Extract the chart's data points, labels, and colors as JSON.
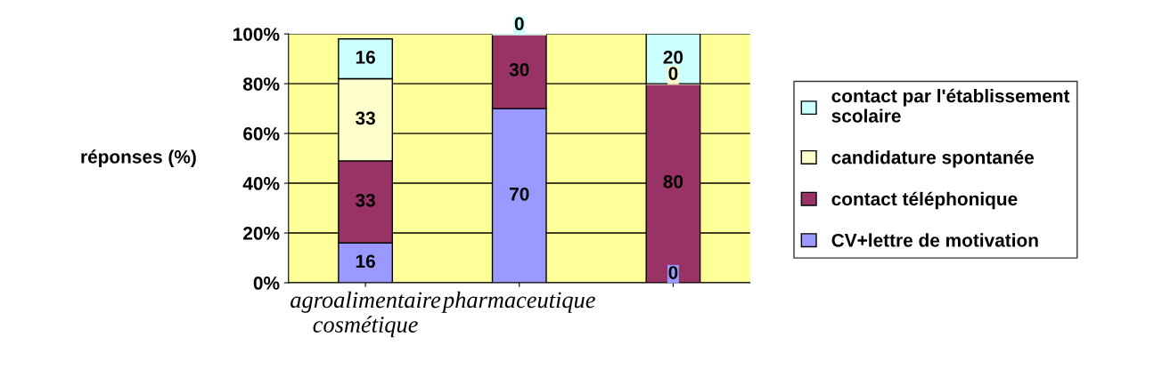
{
  "chart_data": {
    "type": "bar",
    "stacked": true,
    "ylabel": "réponses (%)",
    "categories": [
      "agroalimentaire cosmétique",
      "pharmaceutique",
      null
    ],
    "series": [
      {
        "name": "CV+lettre de motivation",
        "color": "#9999ff",
        "values": [
          16,
          70,
          0
        ],
        "value_labels": [
          "16",
          "70",
          "0"
        ]
      },
      {
        "name": "contact téléphonique",
        "color": "#993366",
        "values": [
          33,
          30,
          80
        ],
        "value_labels": [
          "33",
          "30",
          "80"
        ]
      },
      {
        "name": "candidature spontanée",
        "color": "#ffffcc",
        "values": [
          33,
          null,
          0
        ],
        "value_labels": [
          "33",
          null,
          "0"
        ]
      },
      {
        "name": "contact par l'établissement scolaire",
        "color": "#ccffff",
        "values": [
          16,
          0,
          20
        ],
        "value_labels": [
          "16",
          "0",
          "20"
        ]
      }
    ],
    "ylim": [
      0,
      100
    ],
    "yticks": [
      {
        "value": 0,
        "label": "0%"
      },
      {
        "value": 20,
        "label": "20%"
      },
      {
        "value": 40,
        "label": "40%"
      },
      {
        "value": 60,
        "label": "60%"
      },
      {
        "value": 80,
        "label": "80%"
      },
      {
        "value": 100,
        "label": "100%"
      }
    ],
    "grid": "y",
    "legend": "right"
  }
}
